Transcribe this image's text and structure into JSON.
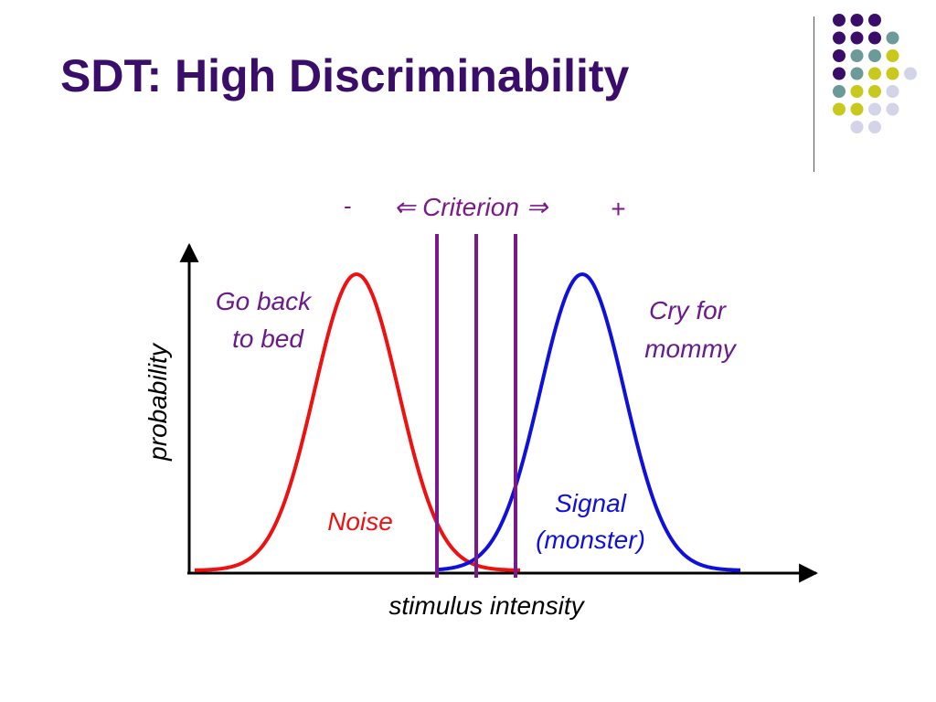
{
  "slide": {
    "title": "SDT: High Discriminability"
  },
  "decoration": {
    "dot_grid_icon": "dot-grid-decoration",
    "palette": {
      "purple": "#3a0d6b",
      "teal": "#6b9a99",
      "olive": "#c9c91d",
      "lavender": "#d4d4e8"
    }
  },
  "diagram": {
    "criterion": {
      "minus": "-",
      "label": "⇐ Criterion ⇒",
      "plus": "+"
    },
    "ylabel": "probability",
    "xlabel": "stimulus intensity",
    "noise_action": [
      "Go back",
      "to bed"
    ],
    "signal_action": [
      "Cry for",
      "mommy"
    ],
    "noise_label": "Noise",
    "signal_label": [
      "Signal",
      "(monster)"
    ],
    "colors": {
      "noise": "#ee1111",
      "signal": "#1010dd",
      "criterion": "#7a1a8a",
      "action_text": "#6a1a8a",
      "axis": "#000000"
    }
  }
}
